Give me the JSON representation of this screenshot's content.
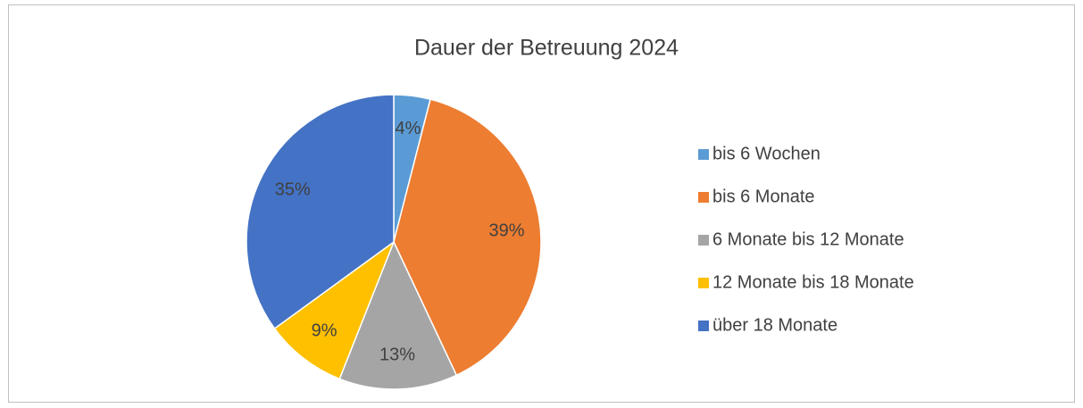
{
  "chart_data": {
    "type": "pie",
    "title": "Dauer der Betreuung 2024",
    "categories": [
      "bis 6 Wochen",
      "bis 6 Monate",
      "6 Monate bis 12 Monate",
      "12 Monate bis 18 Monate",
      "über 18 Monate"
    ],
    "values": [
      4,
      39,
      13,
      9,
      35
    ],
    "value_labels": [
      "4%",
      "39%",
      "13%",
      "9%",
      "35%"
    ],
    "colors": [
      "#5b9bd5",
      "#ed7d31",
      "#a5a5a5",
      "#ffc000",
      "#4472c4"
    ],
    "legend": "right"
  }
}
